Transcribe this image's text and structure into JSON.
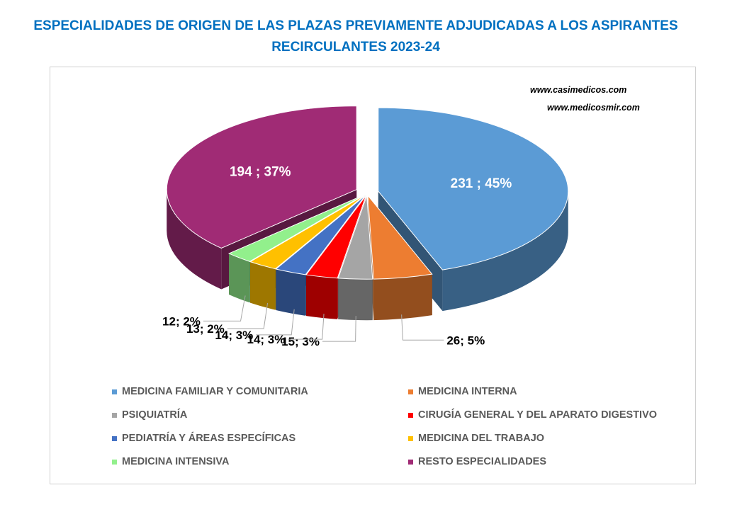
{
  "title": {
    "line1": "ESPECIALIDADES DE ORIGEN DE LAS PLAZAS PREVIAMENTE ADJUDICADAS A LOS ASPIRANTES",
    "line2": "RECIRCULANTES 2023-24"
  },
  "watermarks": [
    "www.casimedicos.com",
    "www.medicosmir.com"
  ],
  "chart_data": {
    "type": "pie",
    "three_d": true,
    "title": "ESPECIALIDADES DE ORIGEN DE LAS PLAZAS PREVIAMENTE ADJUDICADAS A LOS ASPIRANTES RECIRCULANTES 2023-24",
    "legend_position": "bottom",
    "slices": [
      {
        "name": "MEDICINA FAMILIAR Y COMUNITARIA",
        "value": 231,
        "percent": 45,
        "label": "231 ; 45%",
        "color": "#5B9BD5"
      },
      {
        "name": "MEDICINA INTERNA",
        "value": 26,
        "percent": 5,
        "label": "26; 5%",
        "color": "#ED7D31"
      },
      {
        "name": "PSIQUIATRÍA",
        "value": 15,
        "percent": 3,
        "label": "15; 3%",
        "color": "#A5A5A5"
      },
      {
        "name": "CIRUGÍA GENERAL Y DEL APARATO DIGESTIVO",
        "value": 14,
        "percent": 3,
        "label": "14; 3%",
        "color": "#FF0000"
      },
      {
        "name": "PEDIATRÍA Y ÁREAS ESPECÍFICAS",
        "value": 14,
        "percent": 3,
        "label": "14; 3%",
        "color": "#4472C4"
      },
      {
        "name": "MEDICINA DEL TRABAJO",
        "value": 13,
        "percent": 2,
        "label": "13; 2%",
        "color": "#FFC000"
      },
      {
        "name": "MEDICINA INTENSIVA",
        "value": 12,
        "percent": 2,
        "label": "12; 2%",
        "color": "#92F08C"
      },
      {
        "name": "RESTO ESPECIALIDADES",
        "value": 194,
        "percent": 37,
        "label": "194 ; 37%",
        "color": "#A02B75"
      }
    ]
  }
}
